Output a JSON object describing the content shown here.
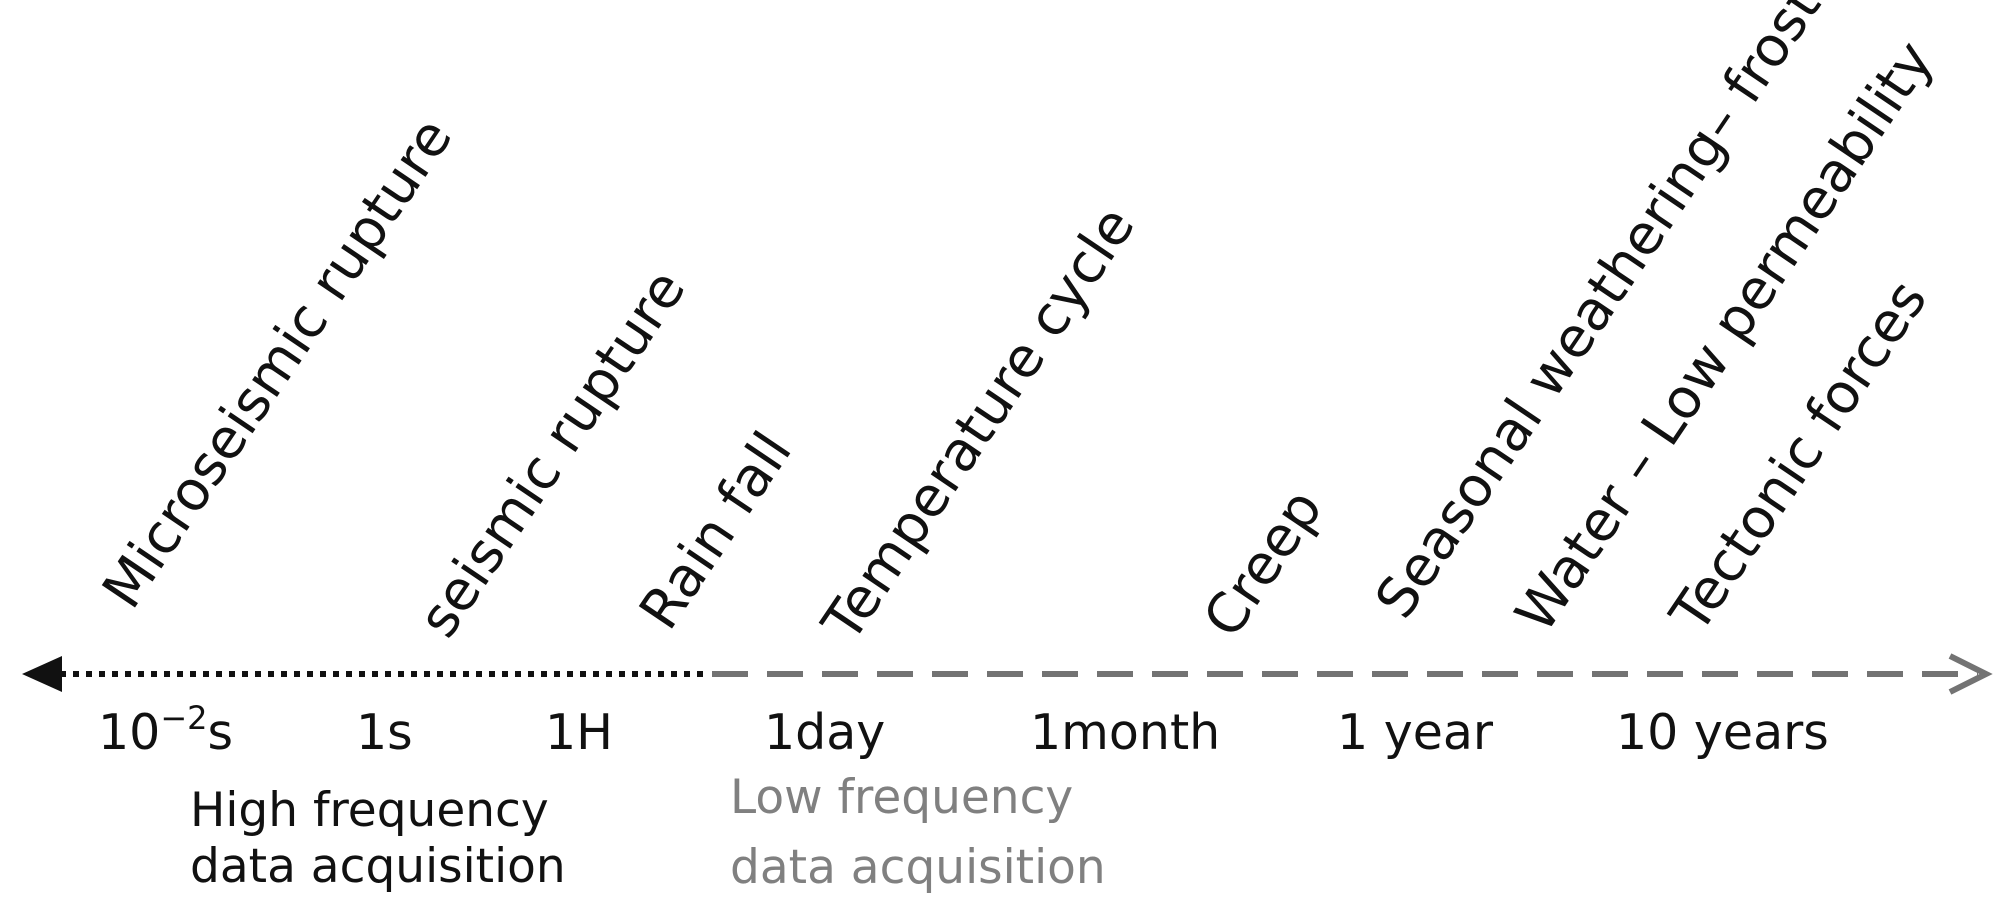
{
  "colors": {
    "text": "#111111",
    "dotted_line": "#111111",
    "dashed_line": "#737373",
    "low_frequency_text": "#808080"
  },
  "events": [
    "Microseismic rupture",
    "seismic rupture",
    "Rain fall",
    "Temperature cycle",
    "Creep",
    "Seasonal weathering– frost",
    "Water – Low permeability",
    "Tectonic forces"
  ],
  "timescale": {
    "first_tick": {
      "base": "10",
      "exponent": "−2",
      "unit": "s"
    },
    "ticks": [
      "1s",
      "1H",
      "1day",
      "1month",
      "1 year",
      "10 years"
    ]
  },
  "acquisition": {
    "high": [
      "High frequency",
      "data acquisition"
    ],
    "low": [
      "Low frequency",
      "data acquisition"
    ]
  }
}
